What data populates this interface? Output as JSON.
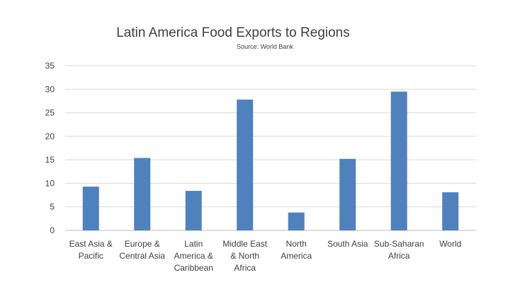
{
  "chart_data": {
    "type": "bar",
    "title": "Latin America Food Exports to Regions",
    "subtitle": "Source: World Bank",
    "xlabel": "",
    "ylabel": "",
    "ylim": [
      0,
      35
    ],
    "yticks": [
      0,
      5,
      10,
      15,
      20,
      25,
      30,
      35
    ],
    "grid": true,
    "legend": "none",
    "bar_color": "#4f81bd",
    "categories": [
      [
        "East Asia &",
        "Pacific"
      ],
      [
        "Europe &",
        "Central Asia"
      ],
      [
        "Latin",
        "America &",
        "Caribbean"
      ],
      [
        "Middle East",
        "& North",
        "Africa"
      ],
      [
        "North",
        "America"
      ],
      [
        "South Asia"
      ],
      [
        "Sub-Saharan",
        "Africa"
      ],
      [
        "World"
      ]
    ],
    "values": [
      9.3,
      15.4,
      8.4,
      27.8,
      3.8,
      15.2,
      29.5,
      8.1
    ]
  }
}
